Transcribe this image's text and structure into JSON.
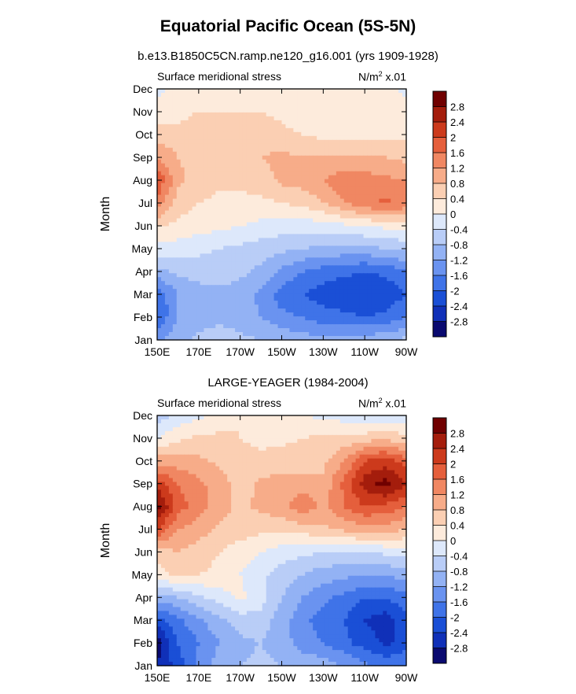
{
  "title": "Equatorial Pacific Ocean (5S-5N)",
  "colorbar_colors": [
    "#0a0a70",
    "#1030b8",
    "#1a4fd6",
    "#3f73e8",
    "#6a93f0",
    "#93b2f4",
    "#b9cdf7",
    "#dde8fb",
    "#fdebdc",
    "#fbcfb3",
    "#f7ac89",
    "#f08762",
    "#e55f3c",
    "#cc3a1c",
    "#a41d0c",
    "#700000"
  ],
  "chart_data": [
    {
      "type": "heatmap",
      "title": "b.e13.B1850C5CN.ramp.ne120_g16.001 (yrs 1909-1928)",
      "left_label": "Surface meridional stress",
      "units": "N/m² x.01",
      "units_base": "N/m",
      "units_sup": "2",
      "units_tail": " x.01",
      "ylabel": "Month",
      "x_ticks": [
        "150E",
        "170E",
        "170W",
        "150W",
        "130W",
        "110W",
        "90W"
      ],
      "x_values": [
        150,
        170,
        190,
        210,
        230,
        250,
        270
      ],
      "y_ticks": [
        "Jan",
        "Feb",
        "Mar",
        "Apr",
        "May",
        "Jun",
        "Jul",
        "Aug",
        "Sep",
        "Oct",
        "Nov",
        "Dec"
      ],
      "xlim": [
        150,
        270
      ],
      "ylim": [
        1,
        12
      ],
      "colorbar_levels": [
        -2.8,
        -2.4,
        -2,
        -1.6,
        -1.2,
        -0.8,
        -0.4,
        0,
        0.4,
        0.8,
        1.2,
        1.6,
        2,
        2.4,
        2.8
      ],
      "colorbar_labels": [
        "2.8",
        "2.4",
        "2",
        "1.6",
        "1.2",
        "0.8",
        "0.4",
        "0",
        "-0.4",
        "-0.8",
        "-1.2",
        "-1.6",
        "-2",
        "-2.4",
        "-2.8"
      ],
      "grid_lon": [
        150,
        160,
        170,
        180,
        190,
        200,
        210,
        220,
        230,
        240,
        250,
        260,
        270
      ],
      "grid_month": [
        1,
        2,
        3,
        4,
        5,
        6,
        7,
        8,
        9,
        10,
        11,
        12
      ],
      "values": [
        [
          -1.3,
          -0.9,
          -0.7,
          -0.6,
          -0.7,
          -0.8,
          -0.9,
          -1.0,
          -1.1,
          -1.1,
          -1.0,
          -0.9,
          -0.7
        ],
        [
          -2.0,
          -1.2,
          -1.0,
          -0.9,
          -1.0,
          -1.2,
          -1.5,
          -1.6,
          -1.8,
          -1.9,
          -2.0,
          -1.9,
          -1.6
        ],
        [
          -1.9,
          -1.2,
          -1.0,
          -0.9,
          -1.0,
          -1.3,
          -1.8,
          -2.0,
          -2.2,
          -2.3,
          -2.4,
          -2.3,
          -2.0
        ],
        [
          -0.9,
          -0.7,
          -0.6,
          -0.6,
          -0.7,
          -0.9,
          -1.3,
          -1.6,
          -1.8,
          -1.9,
          -2.0,
          -1.9,
          -1.6
        ],
        [
          -0.1,
          -0.2,
          -0.3,
          -0.4,
          -0.5,
          -0.6,
          -0.7,
          -0.8,
          -0.9,
          -0.9,
          -0.9,
          -0.8,
          -0.7
        ],
        [
          0.4,
          0.3,
          0.2,
          0.1,
          0.0,
          -0.1,
          -0.2,
          -0.2,
          -0.2,
          -0.1,
          0.0,
          0.1,
          0.2
        ],
        [
          1.5,
          0.6,
          0.4,
          0.3,
          0.3,
          0.3,
          0.4,
          0.5,
          0.8,
          1.2,
          1.5,
          1.7,
          1.5
        ],
        [
          2.0,
          0.9,
          0.6,
          0.5,
          0.5,
          0.6,
          0.9,
          1.0,
          1.2,
          1.5,
          1.4,
          1.3,
          1.2
        ],
        [
          1.2,
          0.8,
          0.7,
          0.7,
          0.7,
          0.8,
          0.9,
          0.8,
          0.8,
          0.8,
          0.8,
          0.8,
          0.7
        ],
        [
          0.6,
          0.5,
          0.6,
          0.6,
          0.6,
          0.6,
          0.5,
          0.4,
          0.3,
          0.3,
          0.3,
          0.3,
          0.3
        ],
        [
          0.2,
          0.3,
          0.4,
          0.4,
          0.4,
          0.4,
          0.3,
          0.2,
          0.2,
          0.2,
          0.2,
          0.2,
          0.1
        ],
        [
          -0.1,
          0.1,
          0.2,
          0.2,
          0.2,
          0.2,
          0.1,
          0.1,
          0.1,
          0.2,
          0.2,
          0.1,
          -0.1
        ]
      ]
    },
    {
      "type": "heatmap",
      "title": "LARGE-YEAGER (1984-2004)",
      "left_label": "Surface meridional stress",
      "units": "N/m² x.01",
      "units_base": "N/m",
      "units_sup": "2",
      "units_tail": " x.01",
      "ylabel": "Month",
      "x_ticks": [
        "150E",
        "170E",
        "170W",
        "150W",
        "130W",
        "110W",
        "90W"
      ],
      "x_values": [
        150,
        170,
        190,
        210,
        230,
        250,
        270
      ],
      "y_ticks": [
        "Jan",
        "Feb",
        "Mar",
        "Apr",
        "May",
        "Jun",
        "Jul",
        "Aug",
        "Sep",
        "Oct",
        "Nov",
        "Dec"
      ],
      "xlim": [
        150,
        270
      ],
      "ylim": [
        1,
        12
      ],
      "colorbar_levels": [
        -2.8,
        -2.4,
        -2,
        -1.6,
        -1.2,
        -0.8,
        -0.4,
        0,
        0.4,
        0.8,
        1.2,
        1.6,
        2,
        2.4,
        2.8
      ],
      "colorbar_labels": [
        "2.8",
        "2.4",
        "2",
        "1.6",
        "1.2",
        "0.8",
        "0.4",
        "0",
        "-0.4",
        "-0.8",
        "-1.2",
        "-1.6",
        "-2",
        "-2.4",
        "-2.8"
      ],
      "grid_lon": [
        150,
        160,
        170,
        180,
        190,
        200,
        210,
        220,
        230,
        240,
        250,
        260,
        270
      ],
      "grid_month": [
        1,
        2,
        3,
        4,
        5,
        6,
        7,
        8,
        9,
        10,
        11,
        12
      ],
      "values": [
        [
          -2.8,
          -2.2,
          -1.5,
          -1.0,
          -0.8,
          -0.7,
          -0.8,
          -0.9,
          -1.0,
          -1.2,
          -1.5,
          -1.7,
          -1.6
        ],
        [
          -3.0,
          -2.0,
          -1.6,
          -1.2,
          -0.9,
          -0.8,
          -1.0,
          -1.4,
          -1.6,
          -1.9,
          -2.2,
          -2.5,
          -2.2
        ],
        [
          -2.2,
          -1.7,
          -1.3,
          -0.9,
          -0.6,
          -0.6,
          -1.0,
          -1.5,
          -1.8,
          -2.0,
          -2.4,
          -2.6,
          -2.2
        ],
        [
          -1.0,
          -0.8,
          -0.5,
          -0.2,
          0.1,
          -0.2,
          -0.8,
          -1.2,
          -1.5,
          -1.7,
          -2.0,
          -2.0,
          -1.7
        ],
        [
          0.2,
          0.5,
          0.4,
          0.3,
          0.0,
          -0.3,
          -0.6,
          -0.8,
          -1.0,
          -1.1,
          -1.2,
          -1.2,
          -1.0
        ],
        [
          0.6,
          0.8,
          0.6,
          0.4,
          0.2,
          0.0,
          -0.2,
          -0.3,
          -0.4,
          -0.4,
          -0.4,
          -0.3,
          -0.2
        ],
        [
          2.0,
          1.2,
          1.0,
          0.7,
          0.6,
          0.5,
          0.5,
          0.6,
          0.7,
          0.9,
          1.0,
          1.0,
          0.8
        ],
        [
          3.0,
          1.8,
          1.4,
          1.0,
          0.7,
          0.9,
          1.1,
          1.5,
          1.1,
          1.6,
          2.0,
          1.9,
          1.6
        ],
        [
          2.2,
          1.6,
          1.3,
          1.0,
          0.6,
          0.9,
          1.0,
          1.0,
          0.9,
          1.7,
          2.6,
          3.0,
          2.4
        ],
        [
          1.0,
          1.0,
          0.9,
          0.7,
          0.5,
          0.5,
          0.6,
          0.6,
          0.7,
          1.2,
          2.0,
          2.2,
          1.8
        ],
        [
          0.0,
          0.3,
          0.5,
          0.5,
          0.4,
          0.3,
          0.3,
          0.4,
          0.5,
          0.5,
          0.6,
          0.7,
          0.5
        ],
        [
          -0.6,
          -0.3,
          -0.1,
          0.1,
          0.4,
          0.3,
          0.1,
          0.0,
          -0.1,
          -0.2,
          -0.3,
          -0.3,
          -0.2
        ]
      ]
    }
  ]
}
